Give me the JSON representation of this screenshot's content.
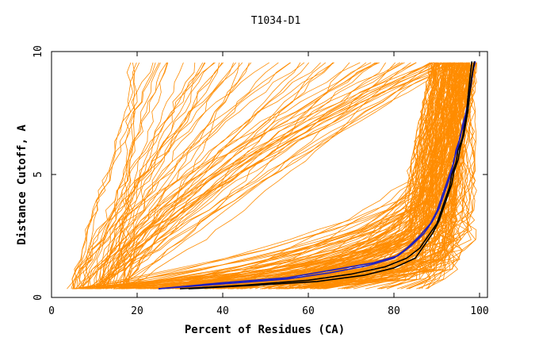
{
  "chart_data": {
    "type": "line",
    "title": "T1034-D1",
    "xlabel": "Percent of Residues (CA)",
    "ylabel": "Distance Cutoff, A",
    "xlim": [
      0,
      100
    ],
    "ylim": [
      0,
      10
    ],
    "x_ticks": [
      "0",
      "20",
      "40",
      "60",
      "80",
      "100"
    ],
    "y_ticks": [
      "0",
      "5",
      "10"
    ],
    "grid": false,
    "legend": "none",
    "colors": {
      "bundle": "#ff8c00",
      "highlight_blue": "#1f1fbf",
      "highlight_black": "#000000",
      "frame": "#000000"
    },
    "series": [
      {
        "color": "#1f1fbf",
        "x": [
          25,
          40,
          55,
          65,
          75,
          81,
          84,
          87,
          89,
          90.5,
          91.5,
          92.5,
          93.5,
          94,
          95,
          95.5,
          96.5,
          97,
          97.5,
          98,
          98.3,
          98.5,
          99
        ],
        "y": [
          0.35,
          0.6,
          0.8,
          1.1,
          1.4,
          1.7,
          2.1,
          2.6,
          3.1,
          3.6,
          4.1,
          4.6,
          5.1,
          5.6,
          6.1,
          6.6,
          7.1,
          7.6,
          8.1,
          8.6,
          9.0,
          9.3,
          9.6
        ]
      },
      {
        "color": "#1f1fbf",
        "x": [
          25,
          40,
          55,
          65,
          74,
          80,
          83,
          86,
          88.5,
          90,
          91,
          92,
          93,
          94,
          94.5,
          95.5,
          96,
          96.8,
          97.3,
          97.8,
          98.2,
          98.6,
          99
        ],
        "y": [
          0.35,
          0.55,
          0.75,
          1.0,
          1.3,
          1.6,
          2.0,
          2.5,
          3.0,
          3.5,
          4.0,
          4.5,
          5.0,
          5.5,
          6.0,
          6.5,
          7.0,
          7.5,
          8.0,
          8.5,
          9.0,
          9.3,
          9.6
        ]
      },
      {
        "color": "#000000",
        "x": [
          30,
          45,
          60,
          70,
          78,
          83,
          86,
          88,
          90,
          91,
          92,
          93,
          93.5,
          94.5,
          95,
          96,
          96.5,
          97,
          97.2,
          97.5,
          97.8,
          98,
          98.2
        ],
        "y": [
          0.35,
          0.5,
          0.7,
          0.95,
          1.25,
          1.6,
          2.0,
          2.5,
          3.0,
          3.5,
          4.0,
          4.5,
          5.0,
          5.5,
          6.0,
          6.5,
          7.0,
          7.5,
          8.0,
          8.5,
          9.0,
          9.3,
          9.6
        ]
      },
      {
        "color": "#000000",
        "x": [
          32,
          48,
          62,
          73,
          80,
          85,
          87,
          89,
          90.5,
          91.5,
          92.5,
          93.5,
          94,
          95,
          95.5,
          96.3,
          96.8,
          97.3,
          97.6,
          97.9,
          98.2,
          98.5,
          98.8
        ],
        "y": [
          0.35,
          0.5,
          0.65,
          0.9,
          1.2,
          1.6,
          2.1,
          2.6,
          3.1,
          3.6,
          4.1,
          4.6,
          5.1,
          5.6,
          6.1,
          6.6,
          7.1,
          7.6,
          8.1,
          8.6,
          9.0,
          9.3,
          9.6
        ]
      }
    ]
  }
}
